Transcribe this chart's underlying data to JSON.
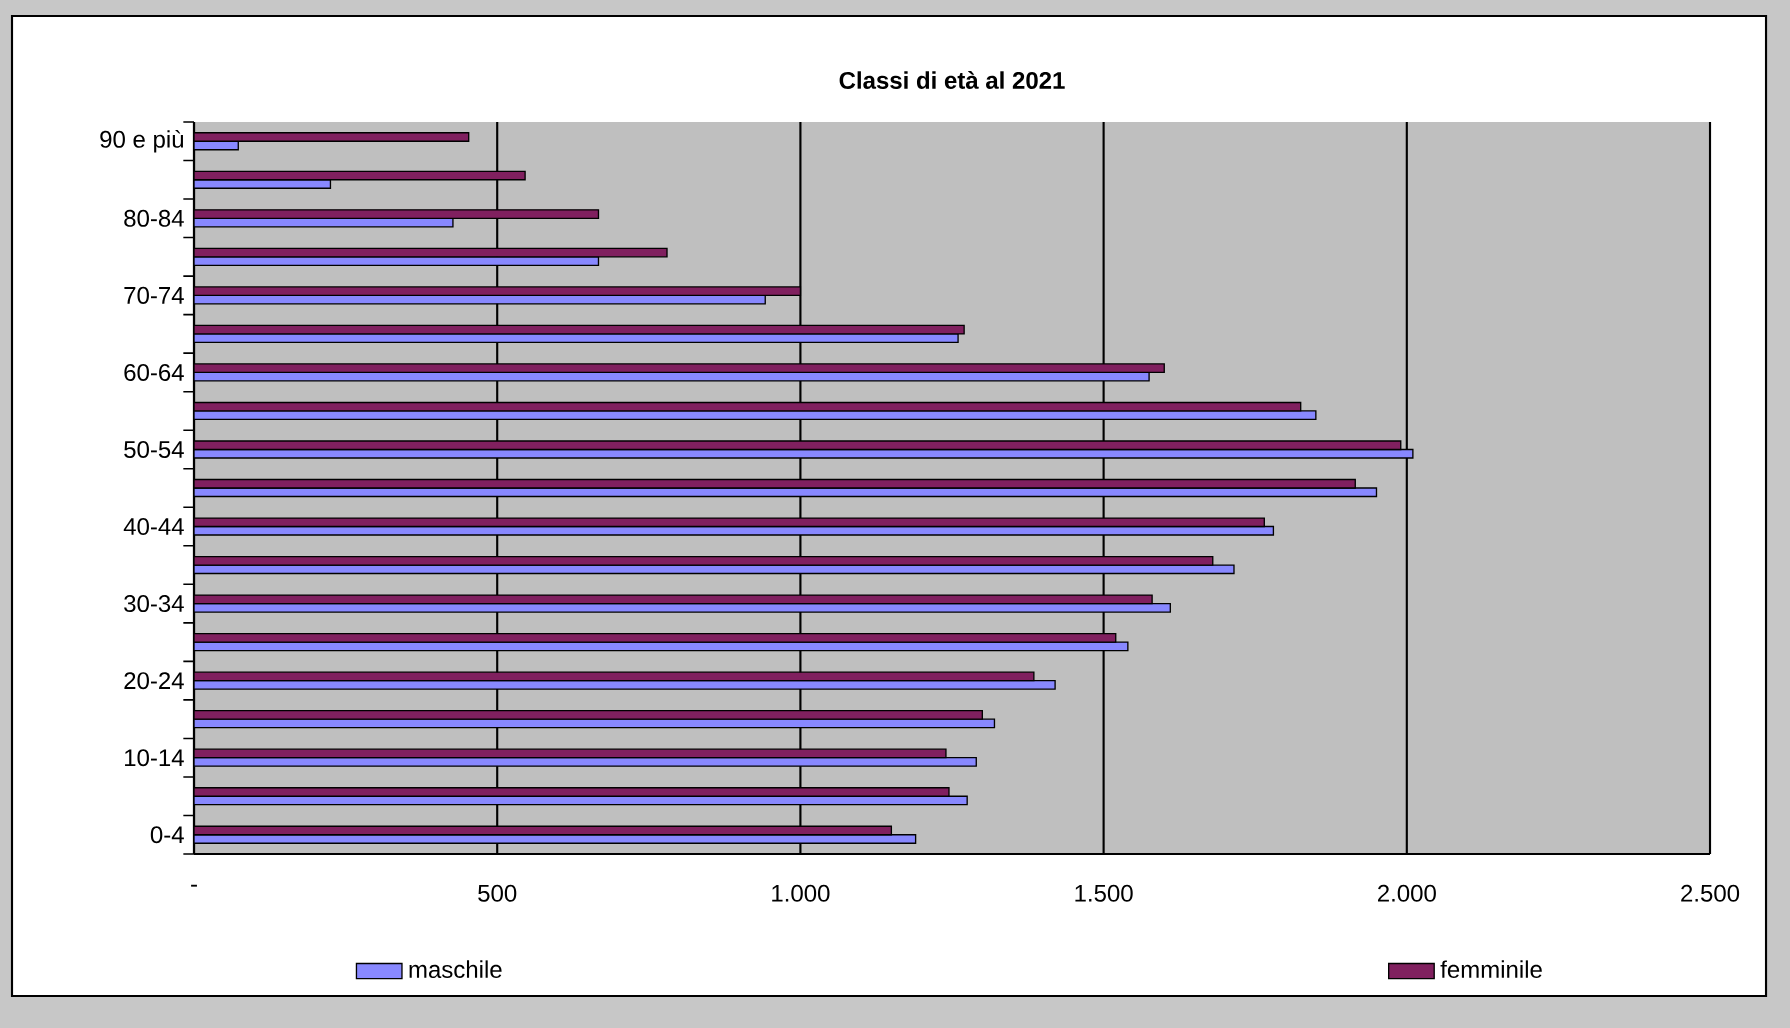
{
  "chart_data": {
    "type": "bar",
    "orientation": "horizontal",
    "title": "Classi di età al 2021",
    "categories": [
      "90 e più",
      null,
      "80-84",
      null,
      "70-74",
      null,
      "60-64",
      null,
      "50-54",
      null,
      "40-44",
      null,
      "30-34",
      null,
      "20-24",
      null,
      "10-14",
      null,
      "0-4"
    ],
    "series": [
      {
        "name": "maschile",
        "color": "#8888ff",
        "values": [
          73,
          225,
          427,
          667,
          942,
          1260,
          1575,
          1850,
          2010,
          1950,
          1780,
          1715,
          1610,
          1540,
          1420,
          1320,
          1290,
          1275,
          1190
        ]
      },
      {
        "name": "femminile",
        "color": "#80205f",
        "values": [
          453,
          546,
          667,
          780,
          1000,
          1270,
          1600,
          1825,
          1990,
          1915,
          1765,
          1680,
          1580,
          1520,
          1385,
          1300,
          1240,
          1245,
          1150
        ]
      }
    ],
    "xlim": [
      0,
      2500
    ],
    "xticks": [
      {
        "value": 0,
        "label": "-"
      },
      {
        "value": 500,
        "label": "500"
      },
      {
        "value": 1000,
        "label": "1.000"
      },
      {
        "value": 1500,
        "label": "1.500"
      },
      {
        "value": 2000,
        "label": "2.000"
      },
      {
        "value": 2500,
        "label": "2.500"
      }
    ],
    "grid": "x",
    "legend": "bottom"
  }
}
